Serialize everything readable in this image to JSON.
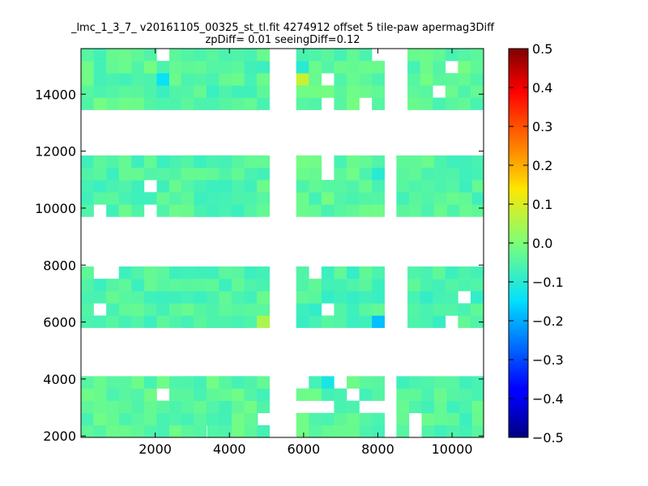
{
  "chart_data": {
    "type": "heatmap",
    "title_line1": "_lmc_1_3_7_ v20161105_00325_st_tl.fit 4274912 offset 5 tile-paw apermag3Diff",
    "title_line2": "zpDiff= 0.01 seeingDiff=0.12",
    "xlabel": "",
    "ylabel": "",
    "xlim": [
      0,
      10850
    ],
    "ylim": [
      1950,
      15600
    ],
    "xticks": [
      2000,
      4000,
      6000,
      8000,
      10000
    ],
    "xtick_labels": [
      "2000",
      "4000",
      "6000",
      "8000",
      "10000"
    ],
    "yticks": [
      2000,
      4000,
      6000,
      8000,
      10000,
      12000,
      14000
    ],
    "ytick_labels": [
      "2000",
      "4000",
      "6000",
      "8000",
      "10000",
      "12000",
      "14000"
    ],
    "colorbar": {
      "colormap": "jet",
      "range": [
        -0.5,
        0.5
      ],
      "ticks": [
        0.5,
        0.4,
        0.3,
        0.2,
        0.1,
        0.0,
        -0.1,
        -0.2,
        -0.3,
        -0.4,
        -0.5
      ],
      "tick_labels": [
        "0.5",
        "0.4",
        "0.3",
        "0.2",
        "0.1",
        "0.0",
        "−0.1",
        "−0.2",
        "−0.3",
        "−0.4",
        "−0.5"
      ]
    },
    "cell_size": [
      340,
      430
    ],
    "detectors": [
      {
        "x0": 0,
        "y0": 13450,
        "cols": 14,
        "rows": 5,
        "base": -0.04
      },
      {
        "x0": 2700,
        "y0": 13450,
        "cols": 7,
        "rows": 5,
        "base": -0.05
      },
      {
        "x0": 5800,
        "y0": 13450,
        "cols": 7,
        "rows": 5,
        "base": -0.04
      },
      {
        "x0": 8800,
        "y0": 13450,
        "cols": 6,
        "rows": 5,
        "base": -0.04
      },
      {
        "x0": 0,
        "y0": 9700,
        "cols": 14,
        "rows": 5,
        "base": -0.05
      },
      {
        "x0": 2700,
        "y0": 9700,
        "cols": 7,
        "rows": 5,
        "base": -0.05
      },
      {
        "x0": 5800,
        "y0": 9700,
        "cols": 7,
        "rows": 5,
        "base": -0.04
      },
      {
        "x0": 8500,
        "y0": 9700,
        "cols": 7,
        "rows": 5,
        "base": -0.05
      },
      {
        "x0": 0,
        "y0": 5800,
        "cols": 14,
        "rows": 5,
        "base": -0.05
      },
      {
        "x0": 2700,
        "y0": 5800,
        "cols": 7,
        "rows": 5,
        "base": -0.05
      },
      {
        "x0": 5800,
        "y0": 5800,
        "cols": 7,
        "rows": 5,
        "base": -0.06
      },
      {
        "x0": 8800,
        "y0": 5800,
        "cols": 6,
        "rows": 5,
        "base": -0.06
      },
      {
        "x0": 0,
        "y0": 1950,
        "cols": 14,
        "rows": 5,
        "base": -0.04
      },
      {
        "x0": 2700,
        "y0": 1950,
        "cols": 7,
        "rows": 5,
        "base": -0.04
      },
      {
        "x0": 5800,
        "y0": 1950,
        "cols": 7,
        "rows": 5,
        "base": -0.04
      },
      {
        "x0": 8500,
        "y0": 1950,
        "cols": 7,
        "rows": 5,
        "base": -0.05
      }
    ],
    "highlights": [
      {
        "x": 7950,
        "y": 6010,
        "value": -0.18
      },
      {
        "x": 2300,
        "y": 14600,
        "value": -0.14
      },
      {
        "x": 5900,
        "y": 14500,
        "value": 0.08
      },
      {
        "x": 5900,
        "y": 15000,
        "value": -0.1
      },
      {
        "x": 6650,
        "y": 3950,
        "value": -0.12
      },
      {
        "x": 5000,
        "y": 5990,
        "value": 0.05
      },
      {
        "x": 2300,
        "y": 14000,
        "value": -0.08
      },
      {
        "x": 7900,
        "y": 11600,
        "value": -0.1
      }
    ],
    "grid": false
  }
}
